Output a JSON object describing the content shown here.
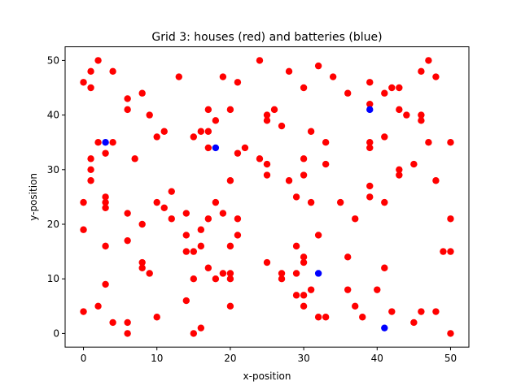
{
  "chart_data": {
    "type": "scatter",
    "title": "Grid 3: houses (red) and batteries (blue)",
    "xlabel": "x-position",
    "ylabel": "y-position",
    "xlim": [
      -2.5,
      52.5
    ],
    "ylim": [
      -2.5,
      52.5
    ],
    "xticks": [
      0,
      10,
      20,
      30,
      40,
      50
    ],
    "yticks": [
      0,
      10,
      20,
      30,
      40,
      50
    ],
    "grid": false,
    "series": [
      {
        "color": "#ff0000",
        "points": [
          [
            0,
            46
          ],
          [
            0,
            24
          ],
          [
            0,
            19
          ],
          [
            0,
            4
          ],
          [
            1,
            48
          ],
          [
            1,
            45
          ],
          [
            1,
            32
          ],
          [
            1,
            30
          ],
          [
            1,
            28
          ],
          [
            2,
            50
          ],
          [
            2,
            35
          ],
          [
            2,
            5
          ],
          [
            3,
            33
          ],
          [
            3,
            25
          ],
          [
            3,
            24
          ],
          [
            3,
            23
          ],
          [
            3,
            16
          ],
          [
            3,
            9
          ],
          [
            4,
            48
          ],
          [
            4,
            35
          ],
          [
            4,
            2
          ],
          [
            6,
            43
          ],
          [
            6,
            41
          ],
          [
            6,
            22
          ],
          [
            6,
            17
          ],
          [
            6,
            2
          ],
          [
            6,
            0
          ],
          [
            7,
            32
          ],
          [
            8,
            44
          ],
          [
            8,
            20
          ],
          [
            8,
            13
          ],
          [
            8,
            12
          ],
          [
            9,
            40
          ],
          [
            9,
            11
          ],
          [
            10,
            36
          ],
          [
            10,
            24
          ],
          [
            10,
            3
          ],
          [
            11,
            37
          ],
          [
            11,
            23
          ],
          [
            12,
            26
          ],
          [
            12,
            21
          ],
          [
            13,
            47
          ],
          [
            14,
            22
          ],
          [
            14,
            18
          ],
          [
            14,
            15
          ],
          [
            14,
            6
          ],
          [
            15,
            36
          ],
          [
            15,
            15
          ],
          [
            15,
            10
          ],
          [
            15,
            0
          ],
          [
            16,
            37
          ],
          [
            16,
            19
          ],
          [
            16,
            16
          ],
          [
            16,
            1
          ],
          [
            17,
            41
          ],
          [
            17,
            37
          ],
          [
            17,
            34
          ],
          [
            17,
            21
          ],
          [
            17,
            12
          ],
          [
            18,
            39
          ],
          [
            18,
            24
          ],
          [
            18,
            10
          ],
          [
            19,
            47
          ],
          [
            19,
            22
          ],
          [
            19,
            11
          ],
          [
            20,
            41
          ],
          [
            20,
            28
          ],
          [
            20,
            16
          ],
          [
            20,
            11
          ],
          [
            20,
            10
          ],
          [
            20,
            5
          ],
          [
            21,
            46
          ],
          [
            21,
            33
          ],
          [
            21,
            21
          ],
          [
            21,
            18
          ],
          [
            22,
            34
          ],
          [
            24,
            50
          ],
          [
            24,
            32
          ],
          [
            25,
            40
          ],
          [
            25,
            39
          ],
          [
            25,
            31
          ],
          [
            25,
            29
          ],
          [
            25,
            13
          ],
          [
            26,
            41
          ],
          [
            27,
            38
          ],
          [
            27,
            11
          ],
          [
            27,
            10
          ],
          [
            28,
            48
          ],
          [
            28,
            28
          ],
          [
            29,
            25
          ],
          [
            29,
            16
          ],
          [
            29,
            11
          ],
          [
            29,
            7
          ],
          [
            30,
            45
          ],
          [
            30,
            32
          ],
          [
            30,
            29
          ],
          [
            30,
            14
          ],
          [
            30,
            13
          ],
          [
            30,
            7
          ],
          [
            30,
            5
          ],
          [
            31,
            37
          ],
          [
            31,
            24
          ],
          [
            31,
            8
          ],
          [
            32,
            49
          ],
          [
            32,
            18
          ],
          [
            32,
            3
          ],
          [
            33,
            35
          ],
          [
            33,
            31
          ],
          [
            33,
            3
          ],
          [
            34,
            47
          ],
          [
            35,
            24
          ],
          [
            36,
            44
          ],
          [
            36,
            14
          ],
          [
            36,
            8
          ],
          [
            37,
            21
          ],
          [
            37,
            5
          ],
          [
            38,
            3
          ],
          [
            39,
            46
          ],
          [
            39,
            42
          ],
          [
            39,
            35
          ],
          [
            39,
            34
          ],
          [
            39,
            27
          ],
          [
            39,
            25
          ],
          [
            40,
            8
          ],
          [
            41,
            44
          ],
          [
            41,
            36
          ],
          [
            41,
            24
          ],
          [
            41,
            12
          ],
          [
            42,
            45
          ],
          [
            42,
            4
          ],
          [
            43,
            45
          ],
          [
            43,
            41
          ],
          [
            43,
            30
          ],
          [
            43,
            29
          ],
          [
            44,
            40
          ],
          [
            45,
            31
          ],
          [
            45,
            2
          ],
          [
            46,
            48
          ],
          [
            46,
            40
          ],
          [
            46,
            39
          ],
          [
            46,
            4
          ],
          [
            47,
            50
          ],
          [
            47,
            35
          ],
          [
            48,
            47
          ],
          [
            48,
            28
          ],
          [
            48,
            4
          ],
          [
            49,
            15
          ],
          [
            50,
            35
          ],
          [
            50,
            21
          ],
          [
            50,
            15
          ],
          [
            50,
            0
          ]
        ]
      },
      {
        "color": "#0000ff",
        "points": [
          [
            3,
            35
          ],
          [
            18,
            34
          ],
          [
            32,
            11
          ],
          [
            39,
            41
          ],
          [
            41,
            1
          ]
        ]
      }
    ]
  }
}
